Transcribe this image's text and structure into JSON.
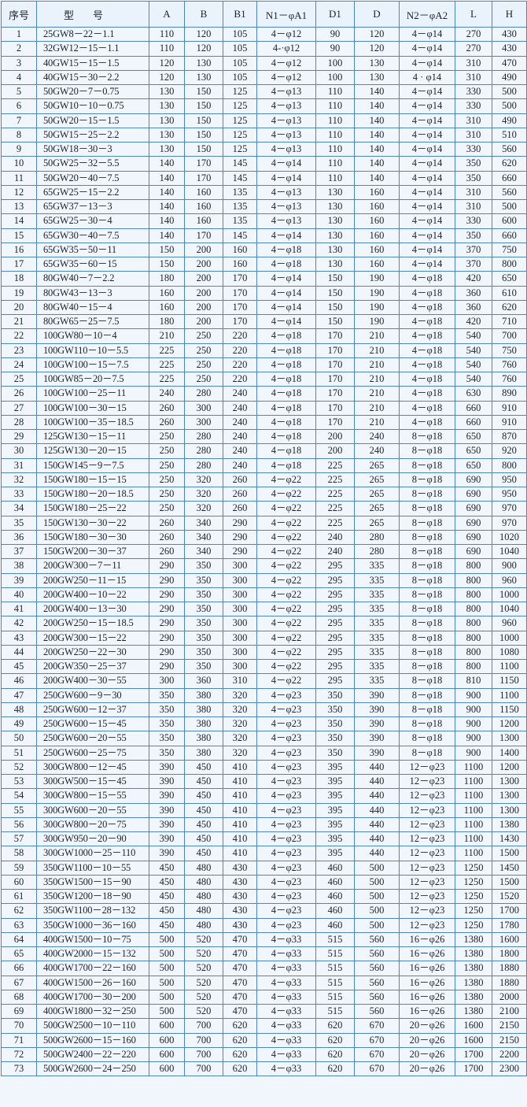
{
  "headers": [
    "序号",
    "型号",
    "A",
    "B",
    "B1",
    "N1－φA1",
    "D1",
    "D",
    "N2－φA2",
    "L",
    "H"
  ],
  "rows": [
    [
      "1",
      "25GW8－22－1.1",
      "110",
      "120",
      "105",
      "4－φ12",
      "90",
      "120",
      "4－φ14",
      "270",
      "430"
    ],
    [
      "2",
      "32GW12－15－1.1",
      "110",
      "120",
      "105",
      "4-·φ12",
      "90",
      "120",
      "4－φ14",
      "270",
      "430"
    ],
    [
      "3",
      "40GW15－15－1.5",
      "120",
      "130",
      "105",
      "4－φ12",
      "100",
      "130",
      "4－φ14",
      "310",
      "470"
    ],
    [
      "4",
      "40GW15－30－2.2",
      "120",
      "130",
      "105",
      "4－φ12",
      "100",
      "130",
      "4 · φ14",
      "310",
      "490"
    ],
    [
      "5",
      "50GW20－7－0.75",
      "130",
      "150",
      "125",
      "4－φ13",
      "110",
      "140",
      "4－φ14",
      "330",
      "500"
    ],
    [
      "6",
      "50GW10－10－0.75",
      "130",
      "150",
      "125",
      "4－φ13",
      "110",
      "140",
      "4－φ14",
      "330",
      "500"
    ],
    [
      "7",
      "50GW20－15－1.5",
      "130",
      "150",
      "125",
      "4－φ13",
      "110",
      "140",
      "4－φ14",
      "310",
      "490"
    ],
    [
      "8",
      "50GW15－25－2.2",
      "130",
      "150",
      "125",
      "4－φ13",
      "110",
      "140",
      "4－φ14",
      "310",
      "510"
    ],
    [
      "9",
      "50GW18－30－3",
      "130",
      "150",
      "125",
      "4－φ13",
      "110",
      "140",
      "4－φ14",
      "330",
      "560"
    ],
    [
      "10",
      "50GW25－32－5.5",
      "140",
      "170",
      "145",
      "4－φ14",
      "110",
      "140",
      "4－φ14",
      "350",
      "620"
    ],
    [
      "11",
      "50GW20－40－7.5",
      "140",
      "170",
      "145",
      "4－φ14",
      "110",
      "140",
      "4－φ14",
      "350",
      "660"
    ],
    [
      "12",
      "65GW25－15－2.2",
      "140",
      "160",
      "135",
      "4－φ13",
      "130",
      "160",
      "4－φ14",
      "310",
      "560"
    ],
    [
      "13",
      "65GW37－13－3",
      "140",
      "160",
      "135",
      "4－φ13",
      "130",
      "160",
      "4－φ14",
      "310",
      "500"
    ],
    [
      "14",
      "65GW25－30－4",
      "140",
      "160",
      "135",
      "4－φ13",
      "130",
      "160",
      "4－φ14",
      "330",
      "600"
    ],
    [
      "15",
      "65GW30－40－7.5",
      "140",
      "170",
      "145",
      "4－φ14",
      "130",
      "160",
      "4－φ14",
      "350",
      "660"
    ],
    [
      "16",
      "65GW35－50－11",
      "150",
      "200",
      "160",
      "4－φ18",
      "130",
      "160",
      "4－φ14",
      "370",
      "750"
    ],
    [
      "17",
      "65GW35－60－15",
      "150",
      "200",
      "160",
      "4－φ18",
      "130",
      "160",
      "4－φ14",
      "370",
      "800"
    ],
    [
      "18",
      "80GW40－7－2.2",
      "180",
      "200",
      "170",
      "4－φ14",
      "150",
      "190",
      "4－φ18",
      "420",
      "650"
    ],
    [
      "19",
      "80GW43－13－3",
      "160",
      "200",
      "170",
      "4－φ14",
      "150",
      "190",
      "4－φ18",
      "360",
      "610"
    ],
    [
      "20",
      "80GW40－15－4",
      "160",
      "200",
      "170",
      "4－φ14",
      "150",
      "190",
      "4－φ18",
      "360",
      "620"
    ],
    [
      "21",
      "80GW65－25－7.5",
      "180",
      "200",
      "170",
      "4－φ14",
      "150",
      "190",
      "4－φ18",
      "420",
      "710"
    ],
    [
      "22",
      "100GW80－10－4",
      "210",
      "250",
      "220",
      "4－φ18",
      "170",
      "210",
      "4－φ18",
      "540",
      "700"
    ],
    [
      "23",
      "100GW110－10－5.5",
      "225",
      "250",
      "220",
      "4－φ18",
      "170",
      "210",
      "4－φ18",
      "540",
      "750"
    ],
    [
      "24",
      "100GW100－15－7.5",
      "225",
      "250",
      "220",
      "4－φ18",
      "170",
      "210",
      "4－φ18",
      "540",
      "760"
    ],
    [
      "25",
      "100GW85－20－7.5",
      "225",
      "250",
      "220",
      "4－φ18",
      "170",
      "210",
      "4－φ18",
      "540",
      "760"
    ],
    [
      "26",
      "100GW100－25－11",
      "240",
      "280",
      "240",
      "4－φ18",
      "170",
      "210",
      "4－φ18",
      "630",
      "890"
    ],
    [
      "27",
      "100GW100－30－15",
      "260",
      "300",
      "240",
      "4－φ18",
      "170",
      "210",
      "4－φ18",
      "660",
      "910"
    ],
    [
      "28",
      "100GW100－35－18.5",
      "260",
      "300",
      "240",
      "4－φ18",
      "170",
      "210",
      "4－φ18",
      "660",
      "910"
    ],
    [
      "29",
      "125GW130－15－11",
      "250",
      "280",
      "240",
      "4－φ18",
      "200",
      "240",
      "8－φ18",
      "650",
      "870"
    ],
    [
      "30",
      "125GW130－20－15",
      "250",
      "280",
      "240",
      "4－φ18",
      "200",
      "240",
      "8－φ18",
      "650",
      "920"
    ],
    [
      "31",
      "150GW145－9－7.5",
      "250",
      "280",
      "240",
      "4－φ18",
      "225",
      "265",
      "8－φ18",
      "650",
      "800"
    ],
    [
      "32",
      "150GW180－15－15",
      "250",
      "320",
      "260",
      "4－φ22",
      "225",
      "265",
      "8－φ18",
      "690",
      "950"
    ],
    [
      "33",
      "150GW180－20－18.5",
      "250",
      "320",
      "260",
      "4－φ22",
      "225",
      "265",
      "8－φ18",
      "690",
      "950"
    ],
    [
      "34",
      "150GW180－25－22",
      "250",
      "320",
      "260",
      "4－φ22",
      "225",
      "265",
      "8－φ18",
      "690",
      "970"
    ],
    [
      "35",
      "150GW130－30－22",
      "260",
      "340",
      "290",
      "4－φ22",
      "225",
      "265",
      "8－φ18",
      "690",
      "970"
    ],
    [
      "36",
      "150GW180－30－30",
      "260",
      "340",
      "290",
      "4－φ22",
      "240",
      "280",
      "8－φ18",
      "690",
      "1020"
    ],
    [
      "37",
      "150GW200－30－37",
      "260",
      "340",
      "290",
      "4－φ22",
      "240",
      "280",
      "8－φ18",
      "690",
      "1040"
    ],
    [
      "38",
      "200GW300－7－11",
      "290",
      "350",
      "300",
      "4－φ22",
      "295",
      "335",
      "8－φ18",
      "800",
      "900"
    ],
    [
      "39",
      "200GW250－11－15",
      "290",
      "350",
      "300",
      "4－φ22",
      "295",
      "335",
      "8－φ18",
      "800",
      "960"
    ],
    [
      "40",
      "200GW400－10－22",
      "290",
      "350",
      "300",
      "4－φ22",
      "295",
      "335",
      "8－φ18",
      "800",
      "1000"
    ],
    [
      "41",
      "200GW400－13－30",
      "290",
      "350",
      "300",
      "4－φ22",
      "295",
      "335",
      "8－φ18",
      "800",
      "1040"
    ],
    [
      "42",
      "200GW250－15－18.5",
      "290",
      "350",
      "300",
      "4－φ22",
      "295",
      "335",
      "8－φ18",
      "800",
      "960"
    ],
    [
      "43",
      "200GW300－15－22",
      "290",
      "350",
      "300",
      "4－φ22",
      "295",
      "335",
      "8－φ18",
      "800",
      "1000"
    ],
    [
      "44",
      "200GW250－22－30",
      "290",
      "350",
      "300",
      "4－φ22",
      "295",
      "335",
      "8－φ18",
      "800",
      "1080"
    ],
    [
      "45",
      "200GW350－25－37",
      "290",
      "350",
      "300",
      "4－φ22",
      "295",
      "335",
      "8－φ18",
      "800",
      "1100"
    ],
    [
      "46",
      "200GW400－30－55",
      "300",
      "360",
      "310",
      "4－φ22",
      "295",
      "335",
      "8－φ18",
      "810",
      "1150"
    ],
    [
      "47",
      "250GW600－9－30",
      "350",
      "380",
      "320",
      "4－φ23",
      "350",
      "390",
      "8－φ18",
      "900",
      "1100"
    ],
    [
      "48",
      "250GW600－12－37",
      "350",
      "380",
      "320",
      "4－φ23",
      "350",
      "390",
      "8－φ18",
      "900",
      "1150"
    ],
    [
      "49",
      "250GW600－15－45",
      "350",
      "380",
      "320",
      "4－φ23",
      "350",
      "390",
      "8－φ18",
      "900",
      "1200"
    ],
    [
      "50",
      "250GW600－20－55",
      "350",
      "380",
      "320",
      "4－φ23",
      "350",
      "390",
      "8－φ18",
      "900",
      "1300"
    ],
    [
      "51",
      "250GW600－25－75",
      "350",
      "380",
      "320",
      "4－φ23",
      "350",
      "390",
      "8－φ18",
      "900",
      "1400"
    ],
    [
      "52",
      "300GW800－12－45",
      "390",
      "450",
      "410",
      "4－φ23",
      "395",
      "440",
      "12－φ23",
      "1100",
      "1200"
    ],
    [
      "53",
      "300GW500－15－45",
      "390",
      "450",
      "410",
      "4－φ23",
      "395",
      "440",
      "12－φ23",
      "1100",
      "1300"
    ],
    [
      "54",
      "300GW800－15－55",
      "390",
      "450",
      "410",
      "4－φ23",
      "395",
      "440",
      "12－φ23",
      "1100",
      "1300"
    ],
    [
      "55",
      "300GW600－20－55",
      "390",
      "450",
      "410",
      "4－φ23",
      "395",
      "440",
      "12－φ23",
      "1100",
      "1300"
    ],
    [
      "56",
      "300GW800－20－75",
      "390",
      "450",
      "410",
      "4－φ23",
      "395",
      "440",
      "12－φ23",
      "1100",
      "1380"
    ],
    [
      "57",
      "300GW950－20－90",
      "390",
      "450",
      "410",
      "4－φ23",
      "395",
      "440",
      "12－φ23",
      "1100",
      "1430"
    ],
    [
      "58",
      "300GW1000－25－110",
      "390",
      "450",
      "410",
      "4－φ23",
      "395",
      "440",
      "12－φ23",
      "1100",
      "1500"
    ],
    [
      "59",
      "350GW1100－10－55",
      "450",
      "480",
      "430",
      "4－φ23",
      "460",
      "500",
      "12－φ23",
      "1250",
      "1450"
    ],
    [
      "60",
      "350GW1500－15－90",
      "450",
      "480",
      "430",
      "4－φ23",
      "460",
      "500",
      "12－φ23",
      "1250",
      "1500"
    ],
    [
      "61",
      "350GW1200－18－90",
      "450",
      "480",
      "430",
      "4－φ23",
      "460",
      "500",
      "12－φ23",
      "1250",
      "1520"
    ],
    [
      "62",
      "350GW1100－28－132",
      "450",
      "480",
      "430",
      "4－φ23",
      "460",
      "500",
      "12－φ23",
      "1250",
      "1700"
    ],
    [
      "63",
      "350GW1000－36－160",
      "450",
      "480",
      "430",
      "4－φ23",
      "460",
      "500",
      "12－φ23",
      "1250",
      "1780"
    ],
    [
      "64",
      "400GW1500－10－75",
      "500",
      "520",
      "470",
      "4－φ33",
      "515",
      "560",
      "16－φ26",
      "1380",
      "1600"
    ],
    [
      "65",
      "400GW2000－15－132",
      "500",
      "520",
      "470",
      "4－φ33",
      "515",
      "560",
      "16－φ26",
      "1380",
      "1800"
    ],
    [
      "66",
      "400GW1700－22－160",
      "500",
      "520",
      "470",
      "4－φ33",
      "515",
      "560",
      "16－φ26",
      "1380",
      "1880"
    ],
    [
      "67",
      "400GW1500－26－160",
      "500",
      "520",
      "470",
      "4－φ33",
      "515",
      "560",
      "16－φ26",
      "1380",
      "1880"
    ],
    [
      "68",
      "400GW1700－30－200",
      "500",
      "520",
      "470",
      "4－φ33",
      "515",
      "560",
      "16－φ26",
      "1380",
      "2000"
    ],
    [
      "69",
      "400GW1800－32－250",
      "500",
      "520",
      "470",
      "4－φ33",
      "515",
      "560",
      "16－φ26",
      "1380",
      "2100"
    ],
    [
      "70",
      "500GW2500－10－110",
      "600",
      "700",
      "620",
      "4－φ33",
      "620",
      "670",
      "20－φ26",
      "1600",
      "2150"
    ],
    [
      "71",
      "500GW2600－15－160",
      "600",
      "700",
      "620",
      "4－φ33",
      "620",
      "670",
      "20－φ26",
      "1600",
      "2150"
    ],
    [
      "72",
      "500GW2400－22－220",
      "600",
      "700",
      "620",
      "4－φ33",
      "620",
      "670",
      "20－φ26",
      "1700",
      "2200"
    ],
    [
      "73",
      "500GW2600－24－250",
      "600",
      "700",
      "620",
      "4－φ33",
      "620",
      "670",
      "20－φ26",
      "1700",
      "2300"
    ]
  ],
  "colors": {
    "grid": "#4d86bd",
    "background": "#f1f6fc",
    "text": "#1b2230"
  }
}
